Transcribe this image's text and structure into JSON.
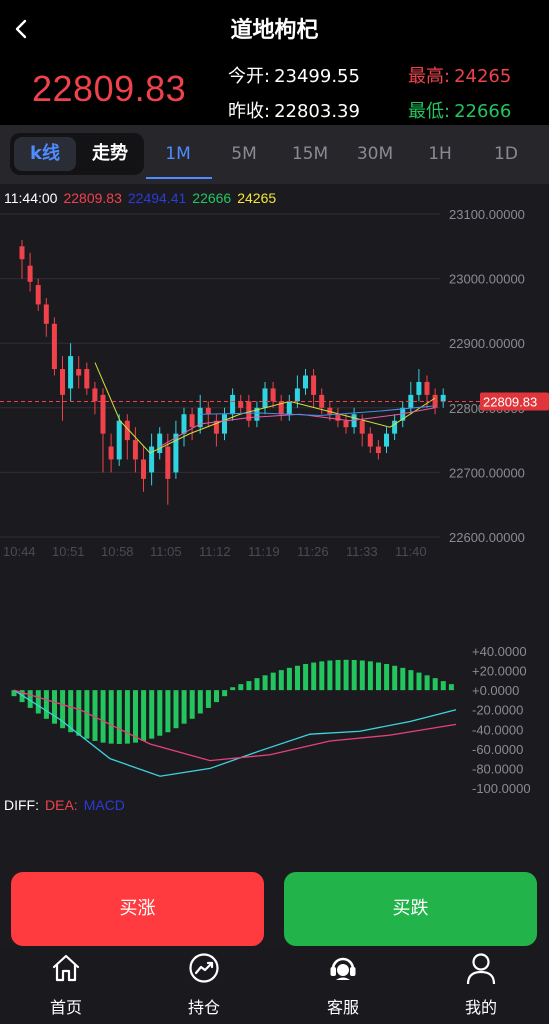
{
  "header": {
    "title": "道地枸杞",
    "price": "22809.83",
    "open_label": "今开:",
    "open_value": "23499.55",
    "prev_close_label": "昨收:",
    "prev_close_value": "22803.39",
    "high_label": "最高:",
    "high_value": "24265",
    "low_label": "最低:",
    "low_value": "22666"
  },
  "tabs": {
    "kline": "k线",
    "trend": "走势",
    "periods": [
      "1M",
      "5M",
      "15M",
      "30M",
      "1H",
      "1D"
    ],
    "active_period": "1M"
  },
  "legend": {
    "time": "11:44:00",
    "close": "22809.83",
    "ma": "22494.41",
    "low": "22666",
    "high": "24265"
  },
  "chart_data": {
    "type": "candlestick",
    "y_ticks": [
      "23100.00000",
      "23000.00000",
      "22900.00000",
      "22800.00000",
      "22700.00000",
      "22600.00000"
    ],
    "x_ticks": [
      "10:44",
      "10:51",
      "10:58",
      "11:05",
      "11:12",
      "11:19",
      "11:26",
      "11:33",
      "11:40"
    ],
    "ylim": [
      22600,
      23100
    ],
    "current_price": "22809.83",
    "macd_ticks": [
      "+40.0000",
      "+20.0000",
      "+0.0000",
      "-20.0000",
      "-40.0000",
      "-60.0000",
      "-80.0000",
      "-100.0000"
    ],
    "macd_ylim": [
      -100,
      40
    ]
  },
  "macd_legend": {
    "diff": "DIFF:",
    "dea": "DEA:",
    "macd": "MACD"
  },
  "colors": {
    "up": "#22c55e",
    "down": "#f0424b",
    "candle_up": "#2fd4e0",
    "candle_down": "#f0424b",
    "accent": "#4e8cff"
  },
  "buttons": {
    "buy_up": "买涨",
    "buy_down": "买跌"
  },
  "nav": {
    "home": "首页",
    "position": "持仓",
    "service": "客服",
    "mine": "我的"
  }
}
